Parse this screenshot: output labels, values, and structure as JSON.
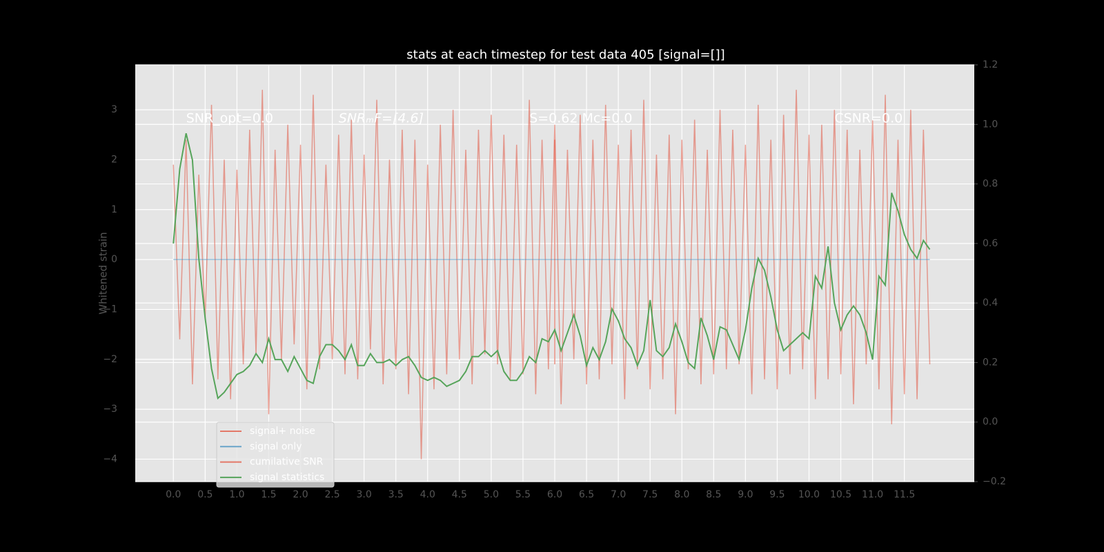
{
  "chart_data": {
    "type": "line",
    "title": "stats at each timestep for test data 405 [signal=[]]",
    "y_label": "Whitened strain",
    "annotations": [
      "SNR_opt=0.0",
      "SNRₘF=[4.6]",
      "S=0.62  Mc=0.0",
      "CSNR=0.0"
    ],
    "x": [
      0,
      0.1,
      0.2,
      0.3,
      0.4,
      0.5,
      0.6,
      0.7,
      0.8,
      0.9,
      1,
      1.1,
      1.2,
      1.3,
      1.4,
      1.5,
      1.6,
      1.7,
      1.8,
      1.9,
      2,
      2.1,
      2.2,
      2.3,
      2.4,
      2.5,
      2.6,
      2.7,
      2.8,
      2.9,
      3,
      3.1,
      3.2,
      3.3,
      3.4,
      3.5,
      3.6,
      3.7,
      3.8,
      3.9,
      4,
      4.1,
      4.2,
      4.3,
      4.4,
      4.5,
      4.6,
      4.7,
      4.8,
      4.9,
      5,
      5.1,
      5.2,
      5.3,
      5.4,
      5.5,
      5.6,
      5.7,
      5.8,
      5.9,
      6,
      6.1,
      6.2,
      6.3,
      6.4,
      6.5,
      6.6,
      6.7,
      6.8,
      6.9,
      7,
      7.1,
      7.2,
      7.3,
      7.4,
      7.5,
      7.6,
      7.7,
      7.8,
      7.9,
      8,
      8.1,
      8.2,
      8.3,
      8.4,
      8.5,
      8.6,
      8.7,
      8.8,
      8.9,
      9,
      9.1,
      9.2,
      9.3,
      9.4,
      9.5,
      9.6,
      9.7,
      9.8,
      9.9,
      10,
      10.1,
      10.2,
      10.3,
      10.4,
      10.5,
      10.6,
      10.7,
      10.8,
      10.9,
      11,
      11.1,
      11.2,
      11.3,
      11.4,
      11.5,
      11.6,
      11.7,
      11.8,
      11.9
    ],
    "series": [
      {
        "name": "signal+ noise",
        "color": "#e24a33",
        "opacity": 0.5,
        "values": [
          1.9,
          -1.6,
          2.4,
          -2.5,
          1.7,
          -1.2,
          3.1,
          -2.4,
          2.0,
          -2.8,
          1.8,
          -2.1,
          2.6,
          -1.9,
          3.4,
          -3.1,
          2.2,
          -2.0,
          2.7,
          -1.7,
          2.3,
          -2.6,
          3.3,
          -2.2,
          1.9,
          -2.0,
          2.5,
          -2.3,
          2.8,
          -2.4,
          2.1,
          -1.8,
          3.2,
          -2.5,
          2.0,
          -2.2,
          2.6,
          -2.7,
          2.4,
          -4.0,
          1.9,
          -2.6,
          2.7,
          -2.3,
          3.0,
          -2.0,
          2.2,
          -2.5,
          2.6,
          -1.9,
          2.9,
          -2.1,
          2.5,
          -2.4,
          2.3,
          -2.3,
          3.2,
          -2.7,
          2.4,
          -2.2,
          2.7,
          -2.9,
          2.2,
          -2.0,
          2.9,
          -2.5,
          2.4,
          -2.4,
          3.1,
          -2.1,
          2.3,
          -2.8,
          2.6,
          -2.2,
          3.2,
          -2.6,
          2.1,
          -2.4,
          2.5,
          -3.1,
          2.4,
          -2.2,
          2.8,
          -2.5,
          2.2,
          -2.3,
          3.0,
          -2.2,
          2.6,
          -2.1,
          2.3,
          -2.7,
          3.1,
          -2.4,
          2.4,
          -2.6,
          2.9,
          -2.3,
          3.4,
          -2.2,
          2.5,
          -2.8,
          2.7,
          -2.4,
          3.0,
          -2.3,
          2.6,
          -2.9,
          2.2,
          -2.1,
          2.8,
          -2.6,
          3.3,
          -3.3,
          2.4,
          -2.7,
          3.0,
          -2.8,
          2.6,
          -2.1
        ]
      },
      {
        "name": "signal only",
        "color": "#348abd",
        "opacity": 0.5,
        "x": [
          0,
          11.9
        ],
        "values": [
          0,
          0
        ]
      },
      {
        "name": "cumilative SNR",
        "color": "#e24a33",
        "opacity": 0.6,
        "x": [
          6,
          6
        ],
        "values": [
          -2.1,
          2.4
        ]
      },
      {
        "name": "signal statistics",
        "color": "#56a45a",
        "opacity": 1,
        "axis": "y2",
        "values": [
          0.6,
          0.85,
          0.97,
          0.88,
          0.55,
          0.35,
          0.18,
          0.08,
          0.1,
          0.13,
          0.16,
          0.17,
          0.19,
          0.23,
          0.2,
          0.28,
          0.21,
          0.21,
          0.17,
          0.22,
          0.18,
          0.14,
          0.13,
          0.22,
          0.26,
          0.26,
          0.24,
          0.21,
          0.26,
          0.19,
          0.19,
          0.23,
          0.2,
          0.2,
          0.21,
          0.19,
          0.21,
          0.22,
          0.19,
          0.15,
          0.14,
          0.15,
          0.14,
          0.12,
          0.13,
          0.14,
          0.17,
          0.22,
          0.22,
          0.24,
          0.22,
          0.24,
          0.17,
          0.14,
          0.14,
          0.17,
          0.22,
          0.2,
          0.28,
          0.27,
          0.31,
          0.24,
          0.3,
          0.36,
          0.29,
          0.19,
          0.25,
          0.21,
          0.27,
          0.38,
          0.34,
          0.28,
          0.25,
          0.19,
          0.24,
          0.41,
          0.24,
          0.22,
          0.25,
          0.33,
          0.27,
          0.2,
          0.18,
          0.35,
          0.29,
          0.21,
          0.32,
          0.31,
          0.26,
          0.21,
          0.31,
          0.45,
          0.55,
          0.51,
          0.42,
          0.31,
          0.24,
          0.26,
          0.28,
          0.3,
          0.28,
          0.49,
          0.45,
          0.59,
          0.4,
          0.31,
          0.36,
          0.39,
          0.36,
          0.3,
          0.21,
          0.49,
          0.46,
          0.77,
          0.71,
          0.63,
          0.58,
          0.55,
          0.61,
          0.58
        ]
      }
    ],
    "xlim": [
      -0.6,
      12.6
    ],
    "xticks": [
      {
        "value": 0,
        "label": "0.0"
      },
      0.5,
      {
        "value": 1,
        "label": "1.0"
      },
      1.5,
      {
        "value": 2,
        "label": "2.0"
      },
      2.5,
      {
        "value": 3,
        "label": "3.0"
      },
      3.5,
      {
        "value": 4,
        "label": "4.0"
      },
      4.5,
      {
        "value": 5,
        "label": "5.0"
      },
      5.5,
      {
        "value": 6,
        "label": "6.0"
      },
      6.5,
      {
        "value": 7,
        "label": "7.0"
      },
      7.5,
      {
        "value": 8,
        "label": "8.0"
      },
      8.5,
      {
        "value": 9,
        "label": "9.0"
      },
      9.5,
      {
        "value": 10,
        "label": "10.0"
      },
      10.5,
      {
        "value": 11,
        "label": "11.0"
      },
      11.5
    ],
    "ylim": [
      -4.45,
      3.9
    ],
    "yticks": [
      {
        "value": -4,
        "label": "−4"
      },
      {
        "value": -3,
        "label": "−3"
      },
      {
        "value": -2,
        "label": "−2"
      },
      {
        "value": -1,
        "label": "−1"
      },
      0,
      1,
      2,
      3
    ],
    "y2lim": [
      -0.2,
      1.2
    ],
    "y2ticks": [
      {
        "value": -0.2,
        "label": "−0.2"
      },
      {
        "value": 0,
        "label": "0.0"
      },
      0.2,
      0.4,
      0.6,
      0.8,
      {
        "value": 1,
        "label": "1.0"
      },
      1.2
    ],
    "grid": true,
    "legend": "lower left"
  }
}
